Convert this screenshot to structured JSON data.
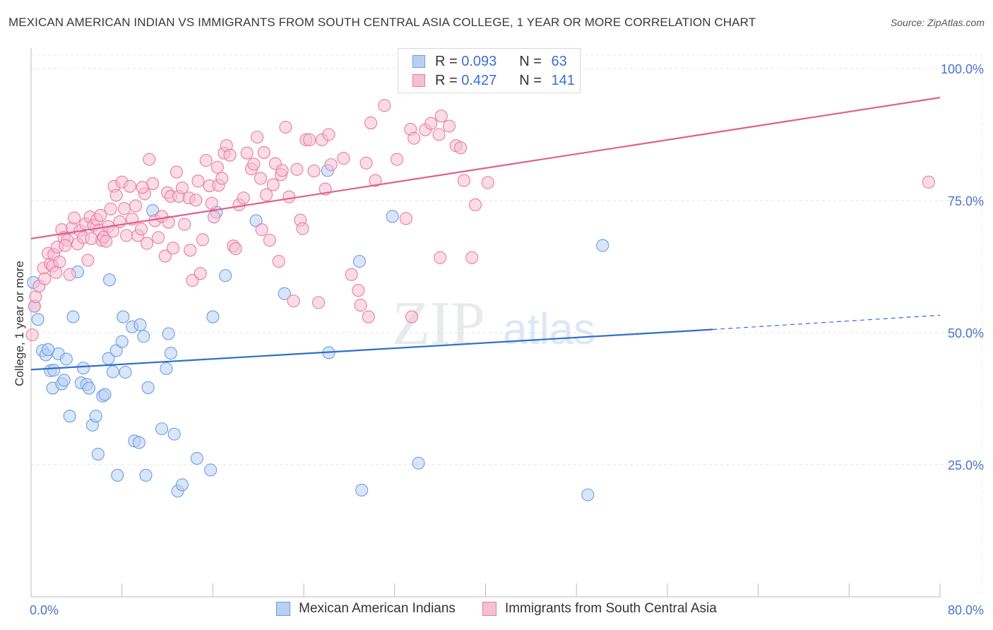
{
  "title": "MEXICAN AMERICAN INDIAN VS IMMIGRANTS FROM SOUTH CENTRAL ASIA COLLEGE, 1 YEAR OR MORE CORRELATION CHART",
  "source": "Source: ZipAtlas.com",
  "colors": {
    "blue": "#6d9de3",
    "blue_fill": "#b9d0f3",
    "pink": "#e97ba1",
    "pink_fill": "#f6c0d3",
    "blue_line": "#2f6fcd",
    "pink_line": "#e0608e",
    "tick_text": "#4a74c9"
  },
  "legend": {
    "rows": [
      {
        "r_label": "R = ",
        "r_value": "0.093",
        "n_label": "N = ",
        "n_value": "63",
        "series": "blue"
      },
      {
        "r_label": "R = ",
        "r_value": "0.427",
        "n_label": "N = ",
        "n_value": "141",
        "series": "pink"
      }
    ]
  },
  "bottom_legend": {
    "blue": "Mexican American Indians",
    "pink": "Immigrants from South Central Asia"
  },
  "watermark": {
    "part1": "ZIP",
    "part2": "atlas"
  },
  "chart_data": {
    "type": "scatter",
    "ylabel": "College, 1 year or more",
    "xlim": [
      0,
      80
    ],
    "ylim": [
      0,
      100
    ],
    "x_tick_labels": [
      "0.0%",
      "80.0%"
    ],
    "y_tick_labels": [
      {
        "value": 100,
        "label": "100.0%"
      },
      {
        "value": 75,
        "label": "75.0%"
      },
      {
        "value": 50,
        "label": "50.0%"
      },
      {
        "value": 25,
        "label": "25.0%"
      }
    ],
    "grid": true,
    "series": [
      {
        "name": "Mexican American Indians",
        "color": "blue",
        "trend": {
          "x0": 0,
          "y0": 43.0,
          "x1": 60,
          "y1": 50.6,
          "dash_to_x": 80,
          "dash_to_y": 53.3
        },
        "points": [
          [
            0.2,
            59.5
          ],
          [
            0.3,
            55.0
          ],
          [
            0.6,
            52.5
          ],
          [
            1.0,
            46.6
          ],
          [
            1.3,
            45.8
          ],
          [
            1.7,
            42.8
          ],
          [
            1.9,
            39.5
          ],
          [
            2.4,
            46.0
          ],
          [
            2.7,
            40.3
          ],
          [
            2.9,
            41.0
          ],
          [
            3.1,
            45.0
          ],
          [
            3.4,
            34.2
          ],
          [
            3.7,
            53.0
          ],
          [
            4.1,
            61.5
          ],
          [
            4.4,
            40.5
          ],
          [
            4.6,
            43.3
          ],
          [
            4.9,
            40.2
          ],
          [
            5.1,
            39.5
          ],
          [
            5.4,
            32.5
          ],
          [
            5.7,
            34.2
          ],
          [
            5.9,
            27.0
          ],
          [
            6.3,
            38.0
          ],
          [
            6.5,
            38.3
          ],
          [
            6.8,
            45.1
          ],
          [
            6.9,
            60.0
          ],
          [
            7.2,
            42.6
          ],
          [
            7.5,
            46.6
          ],
          [
            7.6,
            23.0
          ],
          [
            8.0,
            48.3
          ],
          [
            8.1,
            53.0
          ],
          [
            8.3,
            42.5
          ],
          [
            8.9,
            51.1
          ],
          [
            9.1,
            29.5
          ],
          [
            9.5,
            29.2
          ],
          [
            9.6,
            51.5
          ],
          [
            9.9,
            49.3
          ],
          [
            10.1,
            23.0
          ],
          [
            10.3,
            39.6
          ],
          [
            10.7,
            73.1
          ],
          [
            11.5,
            31.8
          ],
          [
            11.9,
            43.2
          ],
          [
            12.1,
            49.8
          ],
          [
            12.3,
            46.1
          ],
          [
            12.6,
            30.8
          ],
          [
            12.9,
            20.0
          ],
          [
            13.3,
            21.2
          ],
          [
            14.6,
            26.2
          ],
          [
            15.8,
            24.0
          ],
          [
            16.0,
            53.0
          ],
          [
            16.3,
            72.8
          ],
          [
            17.1,
            60.8
          ],
          [
            19.8,
            71.2
          ],
          [
            22.3,
            57.4
          ],
          [
            26.1,
            80.7
          ],
          [
            26.2,
            46.2
          ],
          [
            28.9,
            63.5
          ],
          [
            29.1,
            20.2
          ],
          [
            31.8,
            72.0
          ],
          [
            34.1,
            25.3
          ],
          [
            49.0,
            19.3
          ],
          [
            50.3,
            66.5
          ],
          [
            1.5,
            46.8
          ],
          [
            2.0,
            42.9
          ]
        ]
      },
      {
        "name": "Immigrants from South Central Asia",
        "color": "pink",
        "trend": {
          "x0": 0,
          "y0": 67.8,
          "x1": 80,
          "y1": 94.5
        },
        "points": [
          [
            0.1,
            49.6
          ],
          [
            0.3,
            55.0
          ],
          [
            0.4,
            56.8
          ],
          [
            0.7,
            58.8
          ],
          [
            1.1,
            62.2
          ],
          [
            1.5,
            65.0
          ],
          [
            1.7,
            63.0
          ],
          [
            1.9,
            62.6
          ],
          [
            2.0,
            64.8
          ],
          [
            2.3,
            66.2
          ],
          [
            2.5,
            63.4
          ],
          [
            2.7,
            69.5
          ],
          [
            2.9,
            68.0
          ],
          [
            3.2,
            67.5
          ],
          [
            3.4,
            61.0
          ],
          [
            3.6,
            69.8
          ],
          [
            3.8,
            71.7
          ],
          [
            4.1,
            66.8
          ],
          [
            4.3,
            69.3
          ],
          [
            4.6,
            68.0
          ],
          [
            4.8,
            70.6
          ],
          [
            5.0,
            63.7
          ],
          [
            5.2,
            71.9
          ],
          [
            5.5,
            70.3
          ],
          [
            5.8,
            71.4
          ],
          [
            6.0,
            69.4
          ],
          [
            6.2,
            67.5
          ],
          [
            6.4,
            68.1
          ],
          [
            6.6,
            67.3
          ],
          [
            6.8,
            70.1
          ],
          [
            7.0,
            73.4
          ],
          [
            7.2,
            69.2
          ],
          [
            7.3,
            77.7
          ],
          [
            7.5,
            76.0
          ],
          [
            7.8,
            71.0
          ],
          [
            8.0,
            78.5
          ],
          [
            8.2,
            73.5
          ],
          [
            8.4,
            68.4
          ],
          [
            8.7,
            77.7
          ],
          [
            8.9,
            71.5
          ],
          [
            9.2,
            74.0
          ],
          [
            9.4,
            68.4
          ],
          [
            9.7,
            69.6
          ],
          [
            10.0,
            76.3
          ],
          [
            10.2,
            66.9
          ],
          [
            10.4,
            82.8
          ],
          [
            10.7,
            78.2
          ],
          [
            10.9,
            71.2
          ],
          [
            11.2,
            68.0
          ],
          [
            11.5,
            72.0
          ],
          [
            11.8,
            64.5
          ],
          [
            12.0,
            76.5
          ],
          [
            12.3,
            75.8
          ],
          [
            12.5,
            66.0
          ],
          [
            12.8,
            80.4
          ],
          [
            13.0,
            75.8
          ],
          [
            13.3,
            77.4
          ],
          [
            13.5,
            70.5
          ],
          [
            13.9,
            75.5
          ],
          [
            14.0,
            65.6
          ],
          [
            14.2,
            59.9
          ],
          [
            14.5,
            75.1
          ],
          [
            14.9,
            61.2
          ],
          [
            15.1,
            67.6
          ],
          [
            15.4,
            82.6
          ],
          [
            15.7,
            77.8
          ],
          [
            15.9,
            74.5
          ],
          [
            16.1,
            71.9
          ],
          [
            16.5,
            77.9
          ],
          [
            16.8,
            79.2
          ],
          [
            17.0,
            84.0
          ],
          [
            17.2,
            85.4
          ],
          [
            17.5,
            83.6
          ],
          [
            17.8,
            66.4
          ],
          [
            18.0,
            65.9
          ],
          [
            18.3,
            74.2
          ],
          [
            18.7,
            75.5
          ],
          [
            19.0,
            84.0
          ],
          [
            19.4,
            81.0
          ],
          [
            19.6,
            81.9
          ],
          [
            19.9,
            87.0
          ],
          [
            20.2,
            79.2
          ],
          [
            20.3,
            69.5
          ],
          [
            20.5,
            84.1
          ],
          [
            20.7,
            76.1
          ],
          [
            21.0,
            67.5
          ],
          [
            21.3,
            78.0
          ],
          [
            21.5,
            82.0
          ],
          [
            21.8,
            63.5
          ],
          [
            22.0,
            79.9
          ],
          [
            22.1,
            80.7
          ],
          [
            22.4,
            88.9
          ],
          [
            22.7,
            75.7
          ],
          [
            23.1,
            56.0
          ],
          [
            23.4,
            80.9
          ],
          [
            23.7,
            71.3
          ],
          [
            23.9,
            69.7
          ],
          [
            24.2,
            86.5
          ],
          [
            24.5,
            86.5
          ],
          [
            24.9,
            80.6
          ],
          [
            25.3,
            55.7
          ],
          [
            25.6,
            86.5
          ],
          [
            25.9,
            77.2
          ],
          [
            26.2,
            87.5
          ],
          [
            26.4,
            81.8
          ],
          [
            27.5,
            83.0
          ],
          [
            28.2,
            61.0
          ],
          [
            28.8,
            58.0
          ],
          [
            29.0,
            55.2
          ],
          [
            29.5,
            82.1
          ],
          [
            29.7,
            53.0
          ],
          [
            29.9,
            89.7
          ],
          [
            30.3,
            78.8
          ],
          [
            31.1,
            93.0
          ],
          [
            32.2,
            82.8
          ],
          [
            33.0,
            71.6
          ],
          [
            33.4,
            88.5
          ],
          [
            33.7,
            86.8
          ],
          [
            34.7,
            88.4
          ],
          [
            35.2,
            89.6
          ],
          [
            35.9,
            87.5
          ],
          [
            36.0,
            64.2
          ],
          [
            36.1,
            91.0
          ],
          [
            36.8,
            89.1
          ],
          [
            37.4,
            85.4
          ],
          [
            37.8,
            85.0
          ],
          [
            38.1,
            78.8
          ],
          [
            38.8,
            64.2
          ],
          [
            39.1,
            74.2
          ],
          [
            40.2,
            78.4
          ],
          [
            79.0,
            78.5
          ],
          [
            33.5,
            53.0
          ],
          [
            1.2,
            60.2
          ],
          [
            2.2,
            61.4
          ],
          [
            3.0,
            66.5
          ],
          [
            5.3,
            67.8
          ],
          [
            6.1,
            72.2
          ],
          [
            9.8,
            77.5
          ],
          [
            12.1,
            70.9
          ],
          [
            14.7,
            78.7
          ],
          [
            16.4,
            81.3
          ]
        ]
      }
    ]
  }
}
